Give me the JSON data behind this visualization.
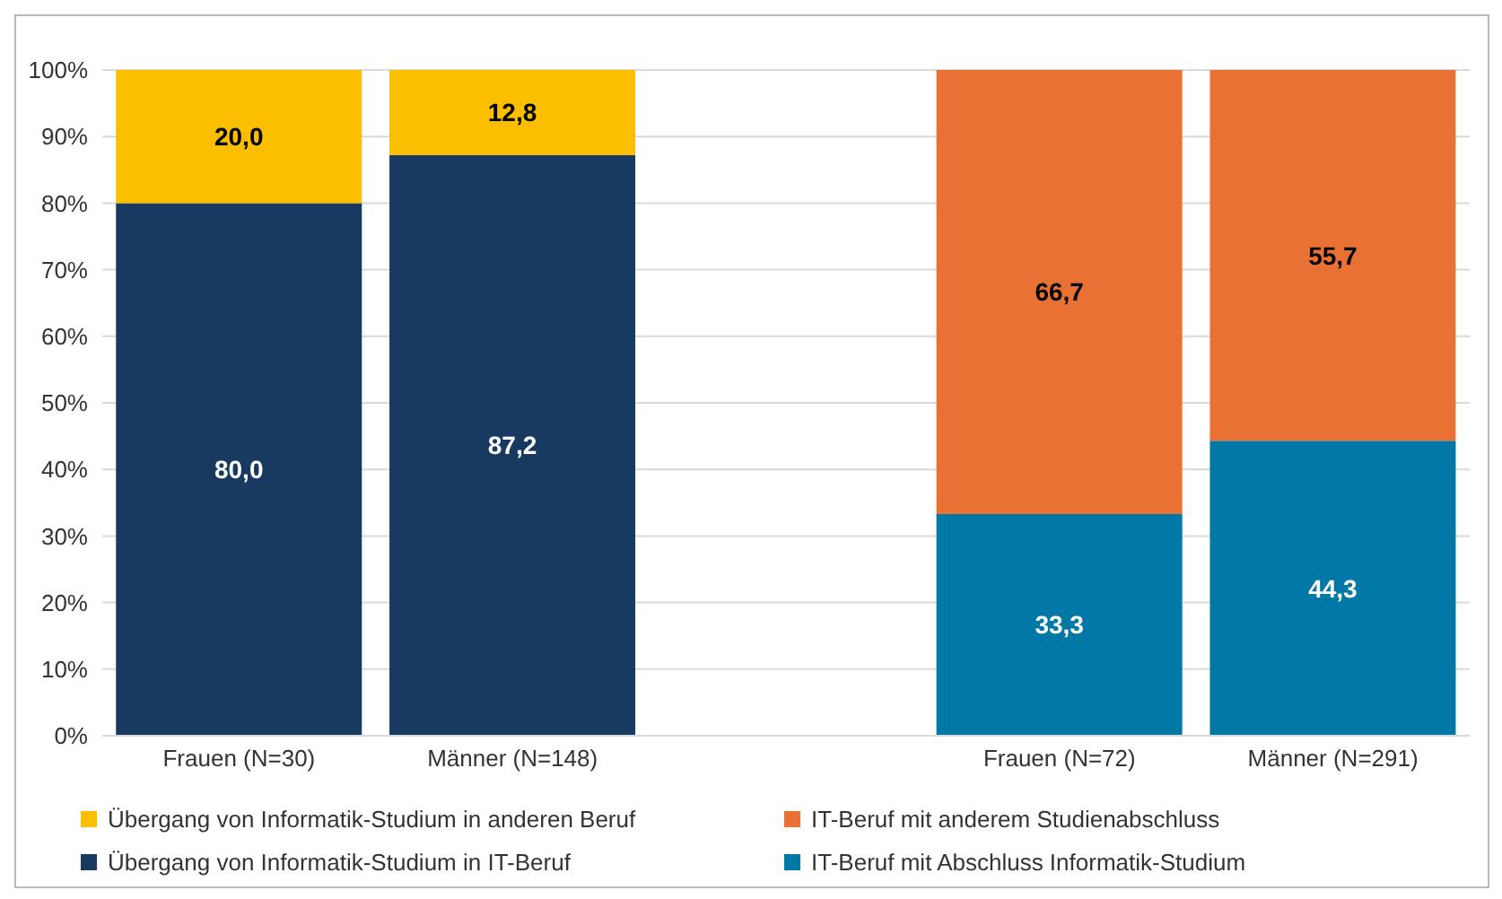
{
  "chart_data": {
    "type": "bar",
    "stacked": true,
    "categories": [
      "Frauen (N=30)",
      "Männer (N=148)",
      null,
      "Frauen (N=72)",
      "Männer (N=291)"
    ],
    "series": [
      {
        "name": "Übergang von Informatik-Studium in IT-Beruf",
        "color": "#183a60",
        "values": [
          80.0,
          87.2,
          null,
          null,
          null
        ],
        "value_labels": [
          "80,0",
          "87,2",
          null,
          null,
          null
        ]
      },
      {
        "name": "Übergang von Informatik-Studium in anderen Beruf",
        "color": "#fcbf00",
        "values": [
          20.0,
          12.8,
          null,
          null,
          null
        ],
        "value_labels": [
          "20,0",
          "12,8",
          null,
          null,
          null
        ]
      },
      {
        "name": "IT-Beruf mit Abschluss Informatik-Studium",
        "color": "#0278a6",
        "values": [
          null,
          null,
          null,
          33.3,
          44.3
        ],
        "value_labels": [
          null,
          null,
          null,
          "33,3",
          "44,3"
        ]
      },
      {
        "name": "IT-Beruf mit anderem Studienabschluss",
        "color": "#ea7134",
        "values": [
          null,
          null,
          null,
          66.7,
          55.7
        ],
        "value_labels": [
          null,
          null,
          null,
          "66,7",
          "55,7"
        ]
      }
    ],
    "ylim": [
      0,
      100
    ],
    "yticks": [
      {
        "value": 0,
        "label": "0%"
      },
      {
        "value": 10,
        "label": "10%"
      },
      {
        "value": 20,
        "label": "20%"
      },
      {
        "value": 30,
        "label": "30%"
      },
      {
        "value": 40,
        "label": "40%"
      },
      {
        "value": 50,
        "label": "50%"
      },
      {
        "value": 60,
        "label": "60%"
      },
      {
        "value": 70,
        "label": "70%"
      },
      {
        "value": 80,
        "label": "80%"
      },
      {
        "value": 90,
        "label": "90%"
      },
      {
        "value": 100,
        "label": "100%"
      }
    ],
    "grid": "y",
    "legend": "bottom"
  }
}
